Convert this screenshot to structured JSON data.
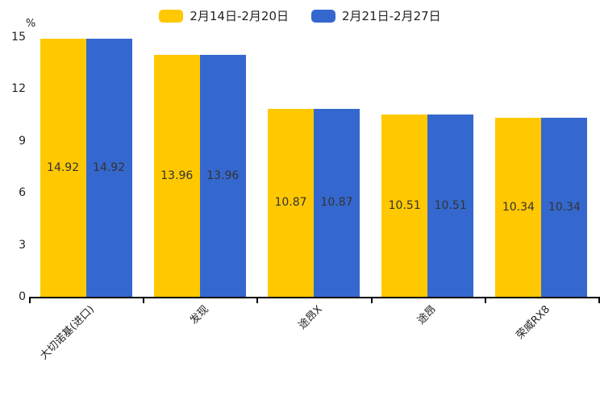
{
  "legend": {
    "items": [
      {
        "label": "2月14日-2月20日",
        "color": "#FFC800"
      },
      {
        "label": "2月21日-2月27日",
        "color": "#3568CE"
      }
    ]
  },
  "chart_data": {
    "type": "bar",
    "title": "",
    "categories": [
      "大切诺基(进口)",
      "发现",
      "途昂X",
      "途昂",
      "荣威RX8"
    ],
    "series": [
      {
        "name": "2月14日-2月20日",
        "color": "#FFC800",
        "values": [
          14.92,
          13.96,
          10.87,
          10.51,
          10.34
        ]
      },
      {
        "name": "2月21日-2月27日",
        "color": "#3568CE",
        "values": [
          14.92,
          13.96,
          10.87,
          10.51,
          10.34
        ]
      }
    ],
    "value_labels": [
      "14.92",
      "13.96",
      "10.87",
      "10.51",
      "10.34"
    ],
    "xlabel": "",
    "ylabel": "%",
    "ylim": [
      0,
      15
    ],
    "yticks": [
      "15",
      "12",
      "9",
      "6",
      "3",
      "0"
    ],
    "grid": false,
    "legend_position": "top"
  },
  "colors": {
    "axis_line": "#000000",
    "tick_text": "#222222",
    "value_label_text": "#333333",
    "background": "#ffffff"
  }
}
